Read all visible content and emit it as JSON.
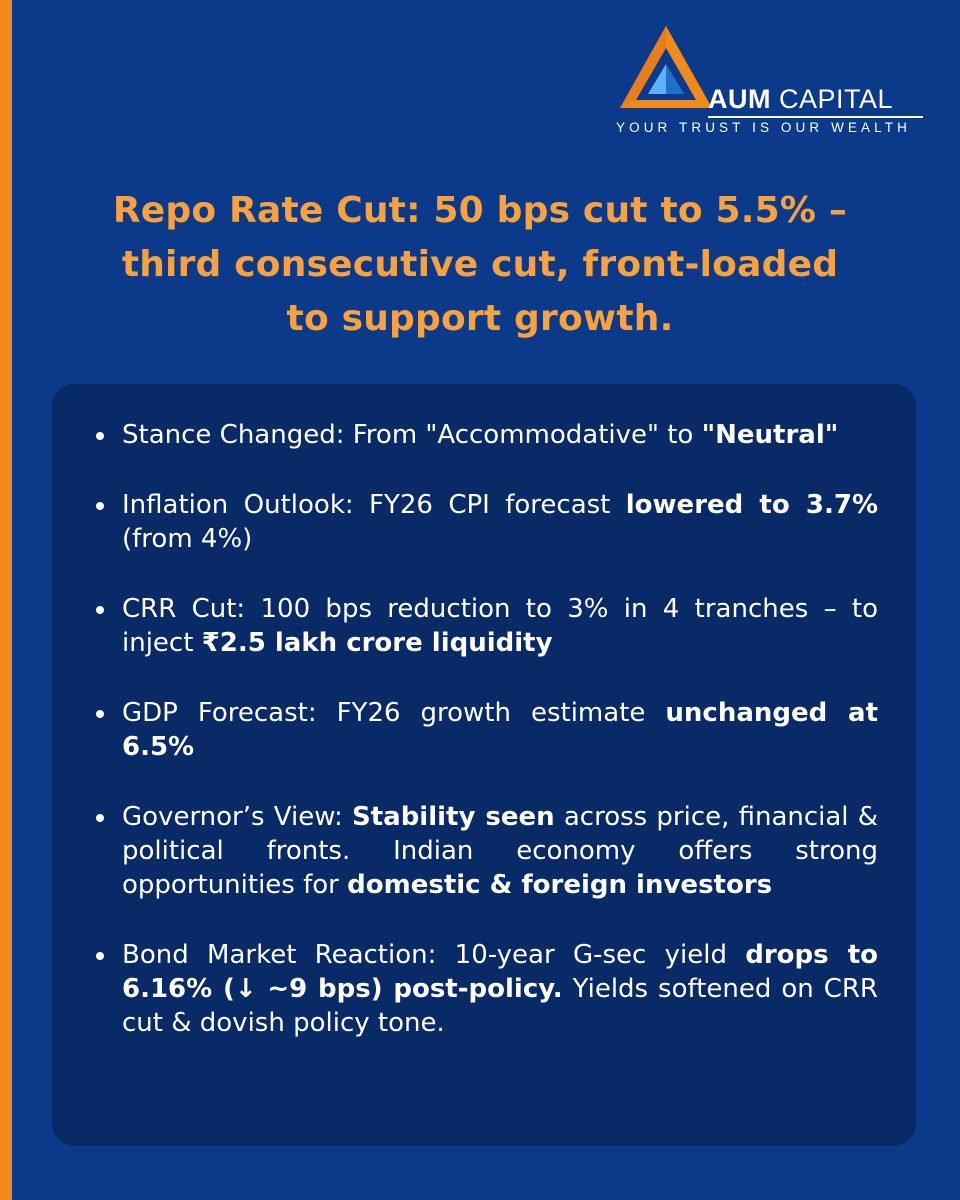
{
  "brand": {
    "name_bold": "AUM",
    "name_rest": "CAPITAL",
    "tagline": "YOUR TRUST IS OUR WEALTH",
    "colors": {
      "orange": "#f08a1c",
      "headline": "#f7a13f",
      "background": "#0b3a8a",
      "card": "#082a66"
    }
  },
  "headline": {
    "line1": "Repo Rate Cut: 50 bps cut to 5.5% –",
    "line2": "third consecutive cut, front-loaded",
    "line3": "to support growth."
  },
  "bullets": [
    {
      "parts": [
        {
          "text": "Stance Changed: From \"Accommodative\" to "
        },
        {
          "text": "\"Neutral\"",
          "bold": true
        }
      ]
    },
    {
      "parts": [
        {
          "text": "Inflation Outlook: FY26 CPI forecast "
        },
        {
          "text": "lowered to 3.7%",
          "bold": true
        },
        {
          "text": " (from 4%)"
        }
      ]
    },
    {
      "parts": [
        {
          "text": "CRR Cut: 100 bps reduction to 3% in 4 tranches – to inject "
        },
        {
          "text": "₹2.5 lakh crore liquidity",
          "bold": true
        }
      ]
    },
    {
      "parts": [
        {
          "text": "GDP Forecast: FY26 growth estimate "
        },
        {
          "text": "unchanged at 6.5%",
          "bold": true
        }
      ]
    },
    {
      "parts": [
        {
          "text": "Governor’s View: "
        },
        {
          "text": "Stability seen",
          "bold": true
        },
        {
          "text": " across price, financial & political fronts. Indian economy offers strong opportunities for "
        },
        {
          "text": "domestic & foreign investors",
          "bold": true
        }
      ]
    },
    {
      "parts": [
        {
          "text": "Bond Market Reaction: 10-year G-sec yield "
        },
        {
          "text": "drops to 6.16% (↓ ~9 bps) post-policy.",
          "bold": true
        },
        {
          "text": " Yields softened on CRR cut & dovish policy tone."
        }
      ]
    }
  ]
}
